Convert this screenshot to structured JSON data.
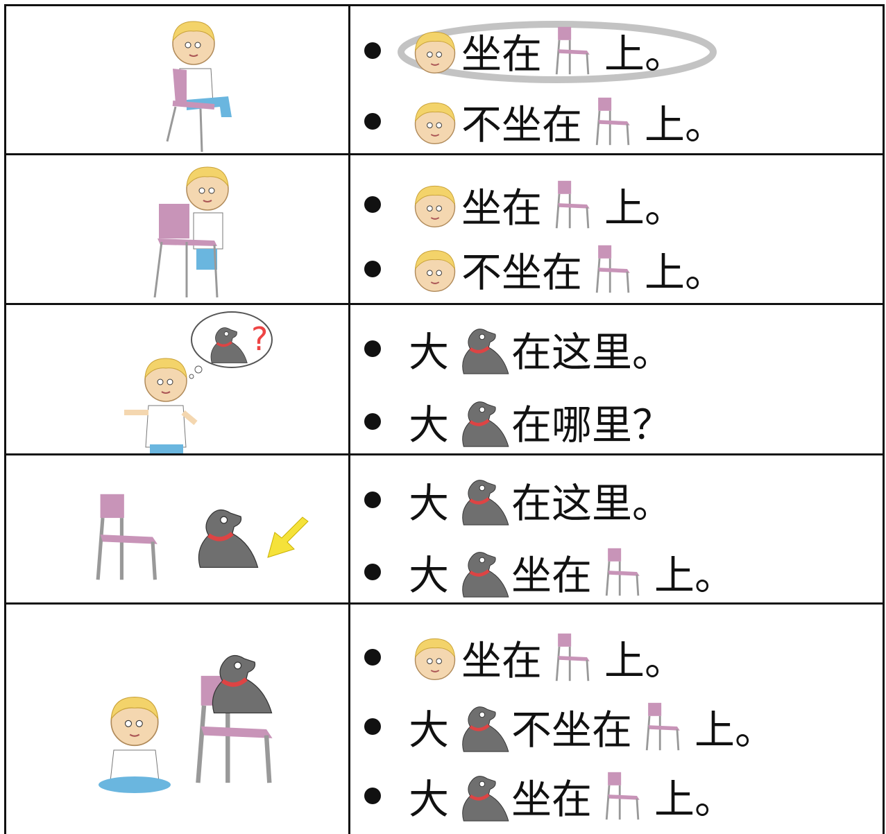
{
  "table": {
    "rows": [
      {
        "lines": [
          [
            "坐在",
            "上。"
          ],
          [
            "不坐在",
            "上。"
          ]
        ]
      },
      {
        "lines": [
          [
            "坐在",
            "上。"
          ],
          [
            "不坐在",
            "上。"
          ]
        ]
      },
      {
        "lines": [
          [
            "大",
            "在这里。"
          ],
          [
            "大",
            "在哪里？"
          ]
        ]
      },
      {
        "lines": [
          [
            "大",
            "在这里。"
          ],
          [
            "大",
            "坐在",
            "上。"
          ]
        ]
      },
      {
        "lines": [
          [
            "坐在",
            "上。"
          ],
          [
            "大",
            "不坐在",
            "上。"
          ],
          [
            "大",
            "坐在",
            "上。"
          ]
        ]
      }
    ]
  }
}
